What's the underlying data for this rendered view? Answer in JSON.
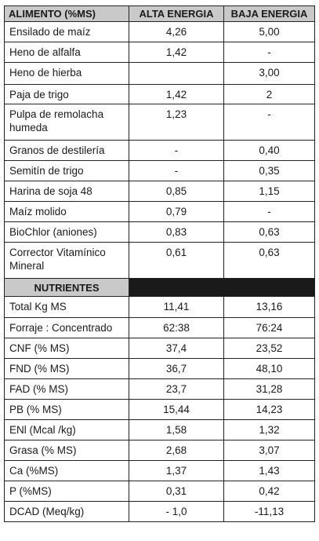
{
  "header": {
    "col1": "ALIMENTO (%MS)",
    "col2": "ALTA ENERGIA",
    "col3": "BAJA ENERGIA"
  },
  "ingredients": [
    {
      "name": "Ensilado de maíz",
      "alta": "4,26",
      "baja": "5,00"
    },
    {
      "name": "Heno de alfalfa",
      "alta": "1,42",
      "baja": "-"
    },
    {
      "name": "Heno de hierba",
      "alta": "",
      "baja": "3,00"
    },
    {
      "name": "Paja de trigo",
      "alta": "1,42",
      "baja": "2"
    },
    {
      "name": "Pulpa de remolacha humeda",
      "alta": "1,23",
      "baja": "-"
    },
    {
      "name": "Granos de destilería",
      "alta": "-",
      "baja": "0,40"
    },
    {
      "name": "Semitín de trigo",
      "alta": "-",
      "baja": "0,35"
    },
    {
      "name": "Harina de soja 48",
      "alta": "0,85",
      "baja": "1,15"
    },
    {
      "name": "Maíz molido",
      "alta": "0,79",
      "baja": "-"
    },
    {
      "name": "BioChlor (aniones)",
      "alta": "0,83",
      "baja": "0,63"
    },
    {
      "name": "Corrector Vitamínico Mineral",
      "alta": "0,61",
      "baja": "0,63"
    }
  ],
  "nutrients_title": "NUTRIENTES",
  "nutrients": [
    {
      "name": "Total Kg MS",
      "alta": "11,41",
      "baja": "13,16"
    },
    {
      "name": "Forraje : Concentrado",
      "alta": "62:38",
      "baja": "76:24"
    },
    {
      "name": "CNF (% MS)",
      "alta": "37,4",
      "baja": "23,52"
    },
    {
      "name": "FND (% MS)",
      "alta": "36,7",
      "baja": "48,10"
    },
    {
      "name": "FAD (% MS)",
      "alta": "23,7",
      "baja": "31,28"
    },
    {
      "name": "PB (% MS)",
      "alta": "15,44",
      "baja": "14,23"
    },
    {
      "name": "ENl (Mcal /kg)",
      "alta": "1,58",
      "baja": "1,32"
    },
    {
      "name": "Grasa (% MS)",
      "alta": "2,68",
      "baja": "3,07"
    },
    {
      "name": "Ca (%MS)",
      "alta": "1,37",
      "baja": "1,43"
    },
    {
      "name": "P (%MS)",
      "alta": "0,31",
      "baja": "0,42"
    },
    {
      "name": "DCAD (Meq/kg)",
      "alta": "- 1,0",
      "baja": "-11,13"
    }
  ]
}
